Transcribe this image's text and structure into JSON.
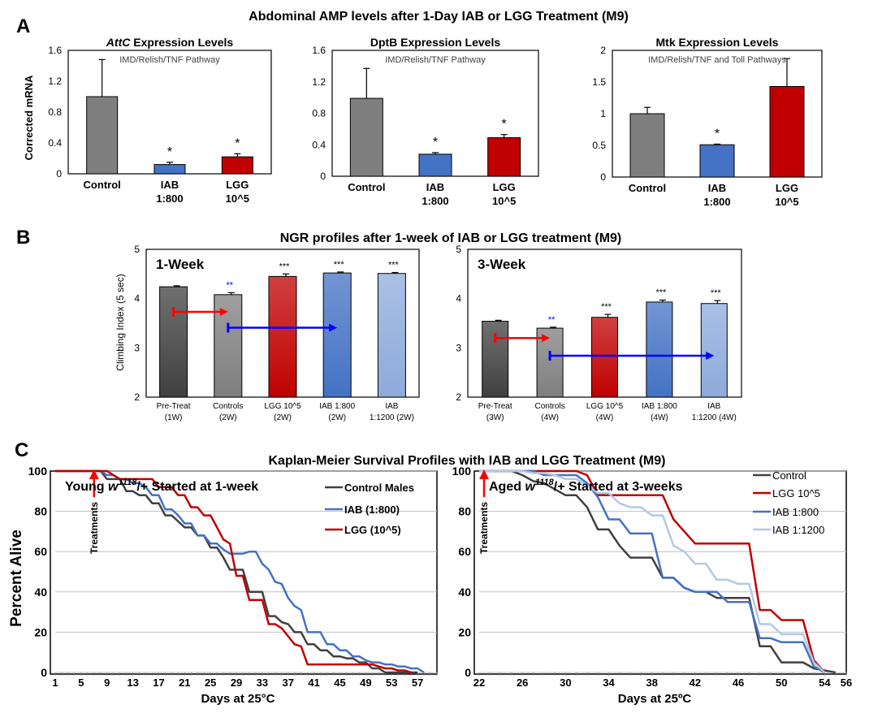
{
  "panels": {
    "A": {
      "letter": "A",
      "title": "Abdominal AMP levels after 1-Day IAB or LGG Treatment (M9)",
      "ylabel": "Corrected mRNA"
    },
    "B": {
      "letter": "B",
      "title": "NGR profiles after 1-week of IAB or LGG treatment (M9)",
      "ylabel": "Climbing Index (5 sec)"
    },
    "C": {
      "letter": "C",
      "title": "Kaplan-Meier Survival Profiles with IAB and LGG Treatment (M9)",
      "ylabel": "Percent Alive",
      "annotation": "Treatments"
    }
  },
  "colors": {
    "control": "#7f7f7f",
    "iab": "#4472c4",
    "lgg": "#c00000",
    "pretreat": "#404040",
    "iab1200": "#8eaadb",
    "arrow_red": "#ff0000",
    "arrow_blue": "#0000ff",
    "sig_blue": "#0000ff"
  },
  "chart_data": [
    {
      "id": "A1",
      "type": "bar",
      "title": "AttC Expression Levels",
      "title_main": "AttC",
      "title_rest": " Expression Levels",
      "subtitle": "IMD/Relish/TNF Pathway",
      "categories": [
        [
          "Control"
        ],
        [
          "IAB",
          "1:800"
        ],
        [
          "LGG",
          "10^5"
        ]
      ],
      "values": [
        1.0,
        0.12,
        0.22
      ],
      "errors": [
        0.48,
        0.03,
        0.04
      ],
      "sig": [
        "",
        "*",
        "*"
      ],
      "colors": [
        "#7f7f7f",
        "#4472c4",
        "#c00000"
      ],
      "ylim": [
        0,
        1.6
      ],
      "yticks": [
        0,
        0.4,
        0.8,
        1.2,
        1.6
      ],
      "ytick_labels": [
        "0",
        "0.4",
        "0.8",
        "1.2",
        "1.6"
      ]
    },
    {
      "id": "A2",
      "type": "bar",
      "title": "DptB Expression Levels",
      "title_main": "DptB Expression Levels",
      "title_rest": "",
      "subtitle": "IMD/Relish/TNF Pathway",
      "categories": [
        [
          "Control"
        ],
        [
          "IAB",
          "1:800"
        ],
        [
          "LGG",
          "10^5"
        ]
      ],
      "values": [
        0.99,
        0.28,
        0.49
      ],
      "errors": [
        0.38,
        0.02,
        0.04
      ],
      "sig": [
        "",
        "*",
        "*"
      ],
      "colors": [
        "#7f7f7f",
        "#4472c4",
        "#c00000"
      ],
      "ylim": [
        0,
        1.6
      ],
      "yticks": [
        0,
        0.4,
        0.8,
        1.2,
        1.6
      ],
      "ytick_labels": [
        "0",
        "0.4",
        "0.8",
        "1.2",
        "1.6"
      ]
    },
    {
      "id": "A3",
      "type": "bar",
      "title": "Mtk Expression Levels",
      "title_main": "Mtk Expression Levels",
      "title_rest": "",
      "subtitle": "IMD/Relish/TNF and Toll Pathways",
      "categories": [
        [
          "Control"
        ],
        [
          "IAB",
          "1:800"
        ],
        [
          "LGG",
          "10^5"
        ]
      ],
      "values": [
        1.0,
        0.51,
        1.43
      ],
      "errors": [
        0.1,
        0.01,
        0.44
      ],
      "sig": [
        "",
        "*",
        ""
      ],
      "colors": [
        "#7f7f7f",
        "#4472c4",
        "#c00000"
      ],
      "ylim": [
        0,
        2
      ],
      "yticks": [
        0,
        0.5,
        1,
        1.5,
        2
      ],
      "ytick_labels": [
        "0",
        "0.5",
        "1",
        "1.5",
        "2"
      ]
    },
    {
      "id": "B1",
      "type": "bar",
      "title": "1-Week",
      "categories": [
        [
          "Pre-Treat",
          "(1W)"
        ],
        [
          "Controls",
          "(2W)"
        ],
        [
          "LGG 10^5",
          "(2W)"
        ],
        [
          "IAB  1:800",
          "(2W)"
        ],
        [
          "IAB",
          "1:1200 (2W)"
        ]
      ],
      "values": [
        4.24,
        4.08,
        4.45,
        4.52,
        4.51
      ],
      "errors": [
        0.02,
        0.04,
        0.05,
        0.02,
        0.02
      ],
      "sig": [
        "",
        "**",
        "***",
        "***",
        "***"
      ],
      "sig_colors": [
        "#000000",
        "#0000ff",
        "#000000",
        "#000000",
        "#000000"
      ],
      "colors": [
        "#404040",
        "#7f7f7f",
        "#c00000",
        "#4472c4",
        "#8eaadb"
      ],
      "ylim": [
        2,
        5
      ],
      "yticks": [
        2,
        3,
        4,
        5
      ],
      "ytick_labels": [
        "2",
        "3",
        "4",
        "5"
      ],
      "arrows": [
        {
          "from": 0,
          "to": 1,
          "y": 3.73,
          "color": "#ff0000"
        },
        {
          "from": 1,
          "to": 3,
          "y": 3.41,
          "color": "#0000ff"
        }
      ]
    },
    {
      "id": "B2",
      "type": "bar",
      "title": "3-Week",
      "categories": [
        [
          "Pre-Treat",
          "(3W)"
        ],
        [
          "Controls",
          "(4W)"
        ],
        [
          "LGG 10^5",
          "(4W)"
        ],
        [
          "IAB  1:800",
          "(4W)"
        ],
        [
          "IAB",
          "1:1200 (4W)"
        ]
      ],
      "values": [
        3.54,
        3.4,
        3.62,
        3.93,
        3.9
      ],
      "errors": [
        0.02,
        0.02,
        0.06,
        0.04,
        0.06
      ],
      "sig": [
        "",
        "**",
        "***",
        "***",
        "***"
      ],
      "sig_colors": [
        "#000000",
        "#0000ff",
        "#000000",
        "#000000",
        "#000000"
      ],
      "colors": [
        "#404040",
        "#7f7f7f",
        "#c00000",
        "#4472c4",
        "#8eaadb"
      ],
      "ylim": [
        2,
        5
      ],
      "yticks": [
        2,
        3,
        4,
        5
      ],
      "ytick_labels": [
        "2",
        "3",
        "4",
        "5"
      ],
      "arrows": [
        {
          "from": 0,
          "to": 1,
          "y": 3.2,
          "color": "#ff0000"
        },
        {
          "from": 1,
          "to": 4,
          "y": 2.84,
          "color": "#0000ff"
        }
      ]
    },
    {
      "id": "C1",
      "type": "line",
      "xlabel": "Days at 25°C",
      "title_prefix": "Young ",
      "title_genotype": "w",
      "title_sup": "1118",
      "title_suffix": "/+ Started at 1-week",
      "xlim": [
        1,
        60
      ],
      "ylim": [
        0,
        100
      ],
      "xticks": [
        1,
        5,
        9,
        13,
        17,
        21,
        25,
        29,
        33,
        37,
        41,
        45,
        49,
        53,
        57
      ],
      "yticks": [
        0,
        20,
        40,
        60,
        80,
        100
      ],
      "treatment_day": 7,
      "series": [
        {
          "name": "Control Males",
          "color": "#404040",
          "x": [
            1,
            7,
            8,
            9,
            10,
            11,
            12,
            13,
            14,
            15,
            16,
            17,
            18,
            19,
            20,
            21,
            22,
            23,
            24,
            25,
            26,
            27,
            28,
            29,
            30,
            31,
            32,
            33,
            34,
            35,
            36,
            37,
            38,
            39,
            40,
            41,
            42,
            43,
            44,
            45,
            46,
            47,
            48,
            49,
            50,
            51,
            52,
            53,
            54,
            55,
            56,
            57
          ],
          "y": [
            100,
            100,
            100,
            96,
            96,
            96,
            90,
            90,
            88,
            88,
            84,
            84,
            78,
            78,
            75,
            72,
            72,
            68,
            68,
            62,
            62,
            57,
            51,
            51,
            51,
            40,
            40,
            40,
            28,
            28,
            25,
            24,
            20,
            20,
            14,
            14,
            11,
            11,
            8,
            8,
            7,
            7,
            5,
            5,
            2,
            2,
            0,
            0,
            0,
            0,
            0,
            0
          ]
        },
        {
          "name": "IAB (1:800)",
          "color": "#4472c4",
          "x": [
            1,
            7,
            8,
            9,
            10,
            11,
            12,
            13,
            14,
            15,
            16,
            17,
            18,
            19,
            20,
            21,
            22,
            23,
            24,
            25,
            26,
            27,
            28,
            29,
            30,
            31,
            32,
            33,
            34,
            35,
            36,
            37,
            38,
            39,
            40,
            41,
            42,
            43,
            44,
            45,
            46,
            47,
            48,
            49,
            50,
            51,
            52,
            53,
            54,
            55,
            56,
            57,
            58
          ],
          "y": [
            100,
            100,
            100,
            98,
            98,
            96,
            96,
            94,
            94,
            92,
            88,
            88,
            81,
            81,
            78,
            74,
            74,
            68,
            68,
            64,
            64,
            61,
            59,
            59,
            59,
            60,
            60,
            54,
            51,
            45,
            44,
            37,
            33,
            31,
            20,
            20,
            20,
            14,
            14,
            11,
            11,
            8,
            8,
            6,
            5,
            5,
            4,
            4,
            3,
            3,
            2,
            2,
            0
          ]
        },
        {
          "name": "LGG (10^5)",
          "color": "#c00000",
          "x": [
            1,
            7,
            8,
            9,
            10,
            11,
            12,
            13,
            14,
            15,
            16,
            17,
            18,
            19,
            20,
            21,
            22,
            23,
            24,
            25,
            26,
            27,
            28,
            29,
            30,
            31,
            32,
            33,
            34,
            35,
            36,
            37,
            38,
            39,
            40,
            41,
            42,
            43,
            44,
            45,
            46,
            47,
            48,
            49,
            50,
            51,
            52,
            53,
            54,
            55,
            56
          ],
          "y": [
            100,
            100,
            100,
            100,
            98,
            96,
            96,
            96,
            96,
            96,
            96,
            92,
            92,
            92,
            88,
            88,
            82,
            82,
            78,
            78,
            72,
            66,
            64,
            48,
            48,
            36,
            36,
            36,
            24,
            24,
            22,
            18,
            14,
            13,
            4,
            4,
            4,
            4,
            4,
            4,
            4,
            4,
            4,
            4,
            4,
            3,
            2,
            2,
            1,
            1,
            0
          ]
        }
      ]
    },
    {
      "id": "C2",
      "type": "line",
      "xlabel": "Days at 25ºC",
      "title_prefix": "Aged ",
      "title_genotype": "w",
      "title_sup": "1118",
      "title_suffix": "/+ Started at 3-weeks",
      "xlim": [
        22,
        56
      ],
      "ylim": [
        0,
        100
      ],
      "xticks": [
        22,
        26,
        30,
        34,
        38,
        42,
        46,
        50,
        54,
        56
      ],
      "yticks": [
        0,
        20,
        40,
        60,
        80,
        100
      ],
      "treatment_day": 22,
      "series": [
        {
          "name": "Control",
          "color": "#404040",
          "x": [
            22,
            25,
            26,
            27,
            28,
            29,
            30,
            31,
            32,
            33,
            34,
            35,
            36,
            37,
            38,
            39,
            40,
            41,
            42,
            43,
            44,
            45,
            46,
            47,
            48,
            49,
            50,
            51,
            52,
            53,
            54,
            55
          ],
          "y": [
            100,
            100,
            98,
            95,
            94,
            91,
            88,
            88,
            82,
            71,
            71,
            63,
            57,
            57,
            57,
            47,
            47,
            42,
            40,
            40,
            37,
            37,
            37,
            37,
            13,
            13,
            5,
            5,
            5,
            2,
            1,
            0
          ]
        },
        {
          "name": "LGG 10^5",
          "color": "#c00000",
          "x": [
            22,
            26,
            27,
            28,
            29,
            30,
            31,
            32,
            33,
            34,
            35,
            36,
            37,
            38,
            39,
            40,
            41,
            42,
            43,
            44,
            45,
            46,
            47,
            48,
            49,
            50,
            51,
            52,
            53,
            54
          ],
          "y": [
            100,
            100,
            100,
            100,
            100,
            100,
            100,
            98,
            88,
            88,
            88,
            88,
            88,
            88,
            88,
            76,
            70,
            64,
            64,
            64,
            64,
            64,
            64,
            31,
            31,
            26,
            26,
            26,
            6,
            0
          ]
        },
        {
          "name": "IAB   1:800",
          "color": "#4472c4",
          "x": [
            22,
            26,
            27,
            28,
            29,
            30,
            31,
            32,
            33,
            34,
            35,
            36,
            37,
            38,
            39,
            40,
            41,
            42,
            43,
            44,
            45,
            46,
            47,
            48,
            49,
            50,
            51,
            52,
            53,
            54
          ],
          "y": [
            100,
            100,
            100,
            98,
            98,
            98,
            98,
            94,
            87,
            76,
            76,
            69,
            69,
            69,
            47,
            47,
            42,
            40,
            40,
            40,
            35,
            35,
            35,
            17,
            17,
            15,
            15,
            15,
            3,
            0
          ]
        },
        {
          "name": "IAB   1:1200",
          "color": "#b4c7e7",
          "x": [
            22,
            26,
            27,
            28,
            29,
            30,
            31,
            32,
            33,
            34,
            35,
            36,
            37,
            38,
            39,
            40,
            41,
            42,
            43,
            44,
            45,
            46,
            47,
            48,
            49,
            50,
            51,
            52,
            53,
            54
          ],
          "y": [
            100,
            100,
            99,
            99,
            98,
            96,
            96,
            93,
            89,
            89,
            84,
            82,
            82,
            78,
            78,
            63,
            60,
            54,
            54,
            46,
            46,
            44,
            44,
            24,
            24,
            19,
            19,
            19,
            5,
            0
          ]
        }
      ]
    }
  ]
}
